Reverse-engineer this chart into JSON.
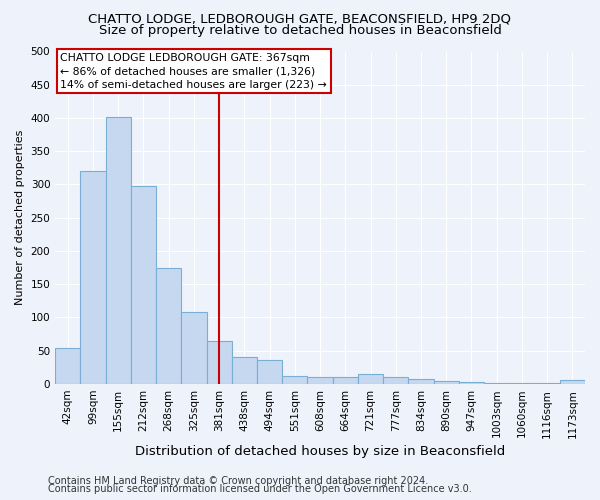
{
  "title": "CHATTO LODGE, LEDBOROUGH GATE, BEACONSFIELD, HP9 2DQ",
  "subtitle": "Size of property relative to detached houses in Beaconsfield",
  "xlabel": "Distribution of detached houses by size in Beaconsfield",
  "ylabel": "Number of detached properties",
  "categories": [
    "42sqm",
    "99sqm",
    "155sqm",
    "212sqm",
    "268sqm",
    "325sqm",
    "381sqm",
    "438sqm",
    "494sqm",
    "551sqm",
    "608sqm",
    "664sqm",
    "721sqm",
    "777sqm",
    "834sqm",
    "890sqm",
    "947sqm",
    "1003sqm",
    "1060sqm",
    "1116sqm",
    "1173sqm"
  ],
  "values": [
    54,
    321,
    401,
    297,
    175,
    108,
    64,
    40,
    36,
    12,
    11,
    11,
    15,
    10,
    8,
    5,
    3,
    2,
    1,
    1,
    6
  ],
  "bar_color": "#c5d8f0",
  "bar_edge_color": "#7aafd4",
  "vline_index": 6,
  "annotation_text_line1": "CHATTO LODGE LEDBOROUGH GATE: 367sqm",
  "annotation_text_line2": "← 86% of detached houses are smaller (1,326)",
  "annotation_text_line3": "14% of semi-detached houses are larger (223) →",
  "annotation_box_color": "#ffffff",
  "annotation_box_edge": "#cc0000",
  "vline_color": "#cc0000",
  "ylim": [
    0,
    500
  ],
  "yticks": [
    0,
    50,
    100,
    150,
    200,
    250,
    300,
    350,
    400,
    450,
    500
  ],
  "footer_line1": "Contains HM Land Registry data © Crown copyright and database right 2024.",
  "footer_line2": "Contains public sector information licensed under the Open Government Licence v3.0.",
  "bg_color": "#eef2fb",
  "grid_color": "#ffffff",
  "title_fontsize": 9.5,
  "subtitle_fontsize": 9.5,
  "xlabel_fontsize": 9.5,
  "ylabel_fontsize": 8,
  "tick_fontsize": 7.5,
  "footer_fontsize": 7,
  "ann_fontsize": 7.8
}
